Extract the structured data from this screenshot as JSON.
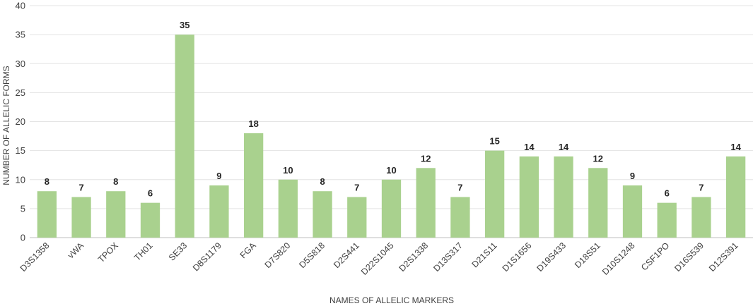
{
  "chart_data": {
    "type": "bar",
    "categories": [
      "D3S1358",
      "vWA",
      "TPOX",
      "TH01",
      "SE33",
      "D8S1179",
      "FGA",
      "D7S820",
      "D5S818",
      "D2S441",
      "D22S1045",
      "D2S1338",
      "D13S317",
      "D21S11",
      "D1S1656",
      "D19S433",
      "D18S51",
      "D10S1248",
      "CSF1PO",
      "D16S539",
      "D12S391"
    ],
    "values": [
      8,
      7,
      8,
      6,
      35,
      9,
      18,
      10,
      8,
      7,
      10,
      12,
      7,
      15,
      14,
      14,
      12,
      9,
      6,
      7,
      14
    ],
    "data_labels": [
      "8",
      "7",
      "8",
      "6",
      "35",
      "9",
      "18",
      "10",
      "8",
      "7",
      "10",
      "12",
      "7",
      "15",
      "14",
      "14",
      "12",
      "9",
      "6",
      "7",
      "14"
    ],
    "yticks": [
      "0",
      "5",
      "10",
      "15",
      "20",
      "25",
      "30",
      "35",
      "40"
    ],
    "ylim": [
      0,
      40
    ],
    "xlabel": "NAMES OF ALLELIC MARKERS",
    "ylabel": "NUMBER OF ALLELIC FORMS",
    "title": "",
    "grid": true,
    "legend": "none",
    "colors": {
      "bar": "#a9d18e",
      "grid": "#e3e3e3",
      "text": "#404040"
    }
  }
}
